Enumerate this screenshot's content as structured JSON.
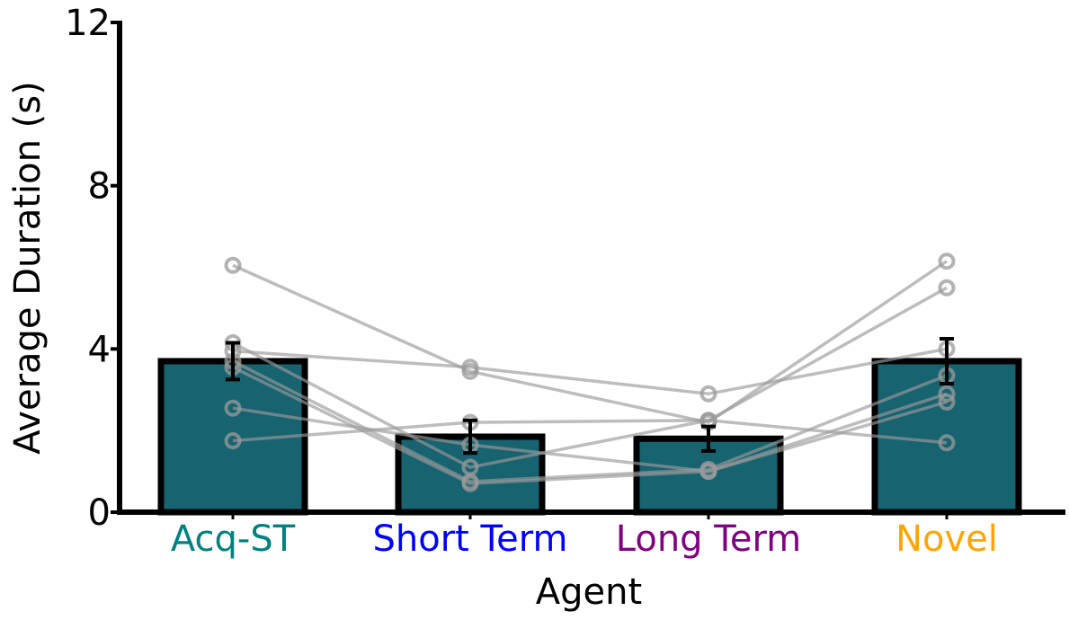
{
  "chart_data": {
    "type": "bar",
    "title": "",
    "xlabel": "Agent",
    "ylabel": "Average Duration (s)",
    "ylim": [
      0,
      12
    ],
    "yticks": [
      "0",
      "4",
      "8",
      "12"
    ],
    "categories": [
      "Acq-ST",
      "Short Term",
      "Long Term",
      "Novel"
    ],
    "category_label_colors": [
      "#008080",
      "#0000ff",
      "#800080",
      "#ffa500"
    ],
    "bar_color": "#186370",
    "bar_edge_color": "#000000",
    "values": [
      3.7,
      1.85,
      1.8,
      3.7
    ],
    "error": [
      0.45,
      0.4,
      0.3,
      0.55
    ],
    "subjects": [
      [
        6.05,
        3.45,
        2.2,
        6.15
      ],
      [
        4.15,
        1.1,
        2.25,
        5.5
      ],
      [
        3.95,
        3.55,
        2.9,
        4.0
      ],
      [
        3.7,
        0.75,
        1.05,
        3.35
      ],
      [
        3.55,
        0.7,
        1.0,
        2.9
      ],
      [
        2.55,
        1.65,
        1.0,
        2.7
      ],
      [
        1.75,
        2.2,
        2.25,
        1.7
      ]
    ],
    "subject_color": "#999999",
    "grid": false,
    "legend": "none"
  }
}
